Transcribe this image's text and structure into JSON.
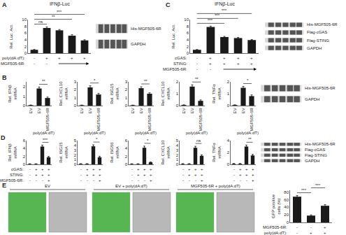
{
  "chart_data": [
    {
      "panel": "A",
      "type": "bar",
      "title": "IFNβ-Luc",
      "ylabel": "Rel. Luc. Act.",
      "categories": [
        null,
        null,
        null,
        null,
        null
      ],
      "values": [
        1.0,
        7.5,
        6.8,
        5.2,
        3.8
      ],
      "errors": [
        0.1,
        0.3,
        0.25,
        0.3,
        0.2
      ],
      "color": "#1a1a1a",
      "ylim": [
        0,
        10
      ],
      "yticks": [
        0,
        2,
        4,
        6,
        8,
        10
      ],
      "grid": false,
      "tick_labels": "y",
      "annotations": [
        {
          "text": "ns",
          "from": 0,
          "to": 1
        },
        {
          "text": "**",
          "from": 0,
          "to": 3
        },
        {
          "text": "***",
          "from": 0,
          "to": 4
        }
      ],
      "condition_rows": [
        {
          "label": "poly(dA:dT):",
          "signs": [
            "-",
            "+",
            "+",
            "+",
            "+"
          ]
        },
        {
          "label": "MGF505-6R:",
          "signs": [
            "-",
            "-",
            null,
            null,
            null
          ]
        }
      ],
      "blot_labels": [
        "His-MGF505-6R",
        "GAPDH"
      ]
    },
    {
      "panel": "C",
      "type": "bar",
      "title": "IFNβ-Luc",
      "ylabel": "Rel. Luc. Act.",
      "categories": [
        null,
        null,
        null,
        null,
        null
      ],
      "values": [
        1.0,
        7.8,
        4.8,
        4.5,
        3.9
      ],
      "errors": [
        0.1,
        0.25,
        0.2,
        0.2,
        0.15
      ],
      "color": "#1a1a1a",
      "ylim": [
        0,
        10
      ],
      "yticks": [
        0,
        2,
        4,
        6,
        8,
        10
      ],
      "grid": false,
      "tick_labels": "y",
      "annotations": [
        {
          "text": "***",
          "from": 0,
          "to": 2
        },
        {
          "text": "***",
          "from": 0,
          "to": 3
        },
        {
          "text": "***",
          "from": 0,
          "to": 4
        }
      ],
      "condition_rows": [
        {
          "label": "cGAS:",
          "signs": [
            "-",
            "+",
            "+",
            "+",
            "+"
          ]
        },
        {
          "label": "STING:",
          "signs": [
            "-",
            "+",
            "+",
            "+",
            "+"
          ]
        },
        {
          "label": "MGF505-6R:",
          "signs": [
            "-",
            "-",
            null,
            null,
            null
          ]
        }
      ],
      "blot_labels": [
        "His-MGF505-6R",
        "Flag-cGAS",
        "Flag-STING",
        "GAPDH"
      ]
    },
    {
      "panel": "B",
      "type": "bar",
      "ylabel": "Rel. IFNβ mRNA",
      "categories": [
        "EV",
        "EV",
        "MGF505-6R"
      ],
      "category_group": {
        "text": "poly(dA:dT)",
        "from": 1,
        "to": 2
      },
      "values": [
        0.05,
        1.8,
        0.8
      ],
      "errors": [
        0.02,
        0.15,
        0.1
      ],
      "color": "#1a1a1a",
      "ylim": [
        0,
        2.5
      ],
      "yticks": [
        0,
        1,
        2
      ],
      "grid": false,
      "annotations": [
        {
          "text": "**",
          "from": 1,
          "to": 2
        }
      ]
    },
    {
      "panel": "B",
      "type": "bar",
      "ylabel": "Rel. CXCL10 mRNA",
      "categories": [
        "EV",
        "EV",
        "MGF505-6R"
      ],
      "category_group": {
        "text": "poly(dA:dT)",
        "from": 1,
        "to": 2
      },
      "values": [
        0.05,
        2.3,
        1.4
      ],
      "errors": [
        0.02,
        0.2,
        0.15
      ],
      "color": "#1a1a1a",
      "ylim": [
        0,
        3.0
      ],
      "yticks": [
        0,
        1,
        2,
        3
      ],
      "grid": false,
      "annotations": [
        {
          "text": "*",
          "from": 1,
          "to": 2
        }
      ]
    },
    {
      "panel": "B",
      "type": "bar",
      "ylabel": "Rel. ISG15 mRNA",
      "categories": [
        "EV",
        "EV",
        "MGF505-6R"
      ],
      "category_group": {
        "text": "poly(dA:dT)",
        "from": 1,
        "to": 2
      },
      "values": [
        0.05,
        2.2,
        1.5
      ],
      "errors": [
        0.02,
        0.18,
        0.12
      ],
      "color": "#1a1a1a",
      "ylim": [
        0,
        3.0
      ],
      "yticks": [
        0,
        1,
        2,
        3
      ],
      "grid": false,
      "annotations": [
        {
          "text": "**",
          "from": 1,
          "to": 2
        }
      ]
    },
    {
      "panel": "B",
      "type": "bar",
      "ylabel": "Rel. CXCL10 mRNA",
      "categories": [
        "EV",
        "EV",
        "MGF505-6R"
      ],
      "category_group": {
        "text": "poly(dA:dT)",
        "from": 1,
        "to": 2
      },
      "values": [
        0.05,
        1.6,
        0.4
      ],
      "errors": [
        0.02,
        0.15,
        0.08
      ],
      "color": "#1a1a1a",
      "ylim": [
        0,
        2.0
      ],
      "yticks": [
        0,
        1,
        2
      ],
      "grid": false,
      "annotations": [
        {
          "text": "**",
          "from": 1,
          "to": 2
        }
      ]
    },
    {
      "panel": "B",
      "type": "bar",
      "ylabel": "Rel. TNFα mRNA",
      "categories": [
        "EV",
        "EV",
        "MGF505-6R"
      ],
      "category_group": {
        "text": "poly(dA:dT)",
        "from": 1,
        "to": 2
      },
      "values": [
        0.05,
        1.5,
        0.8
      ],
      "errors": [
        0.02,
        0.12,
        0.1
      ],
      "color": "#1a1a1a",
      "ylim": [
        0,
        2.0
      ],
      "yticks": [
        0,
        1,
        2
      ],
      "grid": false,
      "annotations": [
        {
          "text": "*",
          "from": 1,
          "to": 2
        }
      ],
      "blot_labels": [
        "His-MGF505-6R",
        "GAPDH"
      ]
    },
    {
      "panel": "D",
      "type": "bar",
      "ylabel": "Rel. IFNβ mRNA",
      "categories": [
        null,
        null,
        null,
        null
      ],
      "values": [
        0.1,
        0.1,
        4.5,
        1.8
      ],
      "errors": [
        0.05,
        0.05,
        0.35,
        0.2
      ],
      "color": "#1a1a1a",
      "ylim": [
        0,
        6
      ],
      "yticks": [
        0,
        2,
        4,
        6
      ],
      "grid": false,
      "tick_labels": "y",
      "annotations": [
        {
          "text": "***",
          "from": 2,
          "to": 3
        }
      ],
      "condition_rows": [
        {
          "label": "cGAS:",
          "signs": [
            "-",
            "+",
            "+",
            "+"
          ]
        },
        {
          "label": "STING:",
          "signs": [
            "-",
            "+",
            "+",
            "+"
          ]
        },
        {
          "label": "MGF505-6R:",
          "signs": [
            "-",
            "-",
            "-",
            "+"
          ]
        }
      ]
    },
    {
      "panel": "D",
      "type": "bar",
      "ylabel": "Rel. ISG15 mRNA",
      "categories": [
        null,
        null,
        null,
        null
      ],
      "values": [
        0.1,
        0.1,
        3.8,
        1.5
      ],
      "errors": [
        0.05,
        0.05,
        0.3,
        0.2
      ],
      "color": "#1a1a1a",
      "ylim": [
        0,
        5
      ],
      "yticks": [
        0,
        1,
        2,
        3,
        4,
        5
      ],
      "grid": false,
      "tick_labels": "y",
      "annotations": [
        {
          "text": "*",
          "from": 2,
          "to": 3
        }
      ],
      "condition_rows": [
        {
          "signs": [
            "-",
            "+",
            "+",
            "+"
          ]
        },
        {
          "signs": [
            "-",
            "+",
            "+",
            "+"
          ]
        },
        {
          "signs": [
            "-",
            "-",
            "-",
            "+"
          ]
        }
      ]
    },
    {
      "panel": "D",
      "type": "bar",
      "ylabel": "Rel. ISG56 mRNA",
      "categories": [
        null,
        null,
        null,
        null
      ],
      "values": [
        0.1,
        0.1,
        4.2,
        0.5
      ],
      "errors": [
        0.05,
        0.05,
        0.4,
        0.1
      ],
      "color": "#1a1a1a",
      "ylim": [
        0,
        6
      ],
      "yticks": [
        0,
        2,
        4,
        6
      ],
      "grid": false,
      "tick_labels": "y",
      "annotations": [
        {
          "text": "*",
          "from": 2,
          "to": 3
        }
      ],
      "condition_rows": [
        {
          "signs": [
            "-",
            "+",
            "+",
            "+"
          ]
        },
        {
          "signs": [
            "-",
            "+",
            "+",
            "+"
          ]
        },
        {
          "signs": [
            "-",
            "-",
            "-",
            "+"
          ]
        }
      ]
    },
    {
      "panel": "D",
      "type": "bar",
      "ylabel": "Rel. CXCL10 mRNA",
      "categories": [
        null,
        null,
        null,
        null
      ],
      "values": [
        0.1,
        0.1,
        3.5,
        1.8
      ],
      "errors": [
        0.05,
        0.05,
        0.3,
        0.2
      ],
      "color": "#1a1a1a",
      "ylim": [
        0,
        5
      ],
      "yticks": [
        0,
        1,
        2,
        3,
        4,
        5
      ],
      "grid": false,
      "tick_labels": "y",
      "annotations": [
        {
          "text": "ns",
          "from": 2,
          "to": 3
        }
      ],
      "condition_rows": [
        {
          "signs": [
            "-",
            "+",
            "+",
            "+"
          ]
        },
        {
          "signs": [
            "-",
            "+",
            "+",
            "+"
          ]
        },
        {
          "signs": [
            "-",
            "-",
            "-",
            "+"
          ]
        }
      ]
    },
    {
      "panel": "D",
      "type": "bar",
      "ylabel": "Rel. TNFα mRNA",
      "categories": [
        null,
        null,
        null,
        null
      ],
      "values": [
        0.1,
        0.1,
        3.0,
        1.5
      ],
      "errors": [
        0.05,
        0.05,
        0.25,
        0.18
      ],
      "color": "#1a1a1a",
      "ylim": [
        0,
        4
      ],
      "yticks": [
        0,
        2,
        4
      ],
      "grid": false,
      "tick_labels": "y",
      "annotations": [
        {
          "text": "**",
          "from": 2,
          "to": 3
        }
      ],
      "condition_rows": [
        {
          "signs": [
            "-",
            "+",
            "+",
            "+"
          ]
        },
        {
          "signs": [
            "-",
            "+",
            "+",
            "+"
          ]
        },
        {
          "signs": [
            "-",
            "-",
            "-",
            "+"
          ]
        }
      ],
      "blot_labels": [
        "His-MGF505-6R",
        "Flag-cGAS",
        "Flag-STING",
        "GAPDH"
      ]
    },
    {
      "panel": "E",
      "type": "bar",
      "ylabel": "GFP positive cells (%)",
      "categories": [
        null,
        null,
        null
      ],
      "values": [
        68,
        18,
        44
      ],
      "errors": [
        3,
        2,
        3
      ],
      "color": "#1a1a1a",
      "ylim": [
        0,
        85
      ],
      "yticks": [
        0,
        20,
        40,
        60,
        80
      ],
      "grid": false,
      "tick_labels": "y",
      "annotations": [
        {
          "text": "***",
          "from": 0,
          "to": 1
        },
        {
          "text": "***",
          "from": 1,
          "to": 2
        }
      ],
      "condition_rows": [
        {
          "label": "MGF505-6R:",
          "signs": [
            "-",
            "-",
            "+"
          ]
        },
        {
          "label": "poly(dA:dT):",
          "signs": [
            "-",
            "+",
            "+"
          ]
        }
      ],
      "images": {
        "labels": [
          "EV",
          "EV + poly(dA:dT)",
          "MGF505-6R + poly(dA:dT)"
        ],
        "colors": [
          "#3aaa35",
          "#b8b8b8"
        ]
      }
    }
  ]
}
